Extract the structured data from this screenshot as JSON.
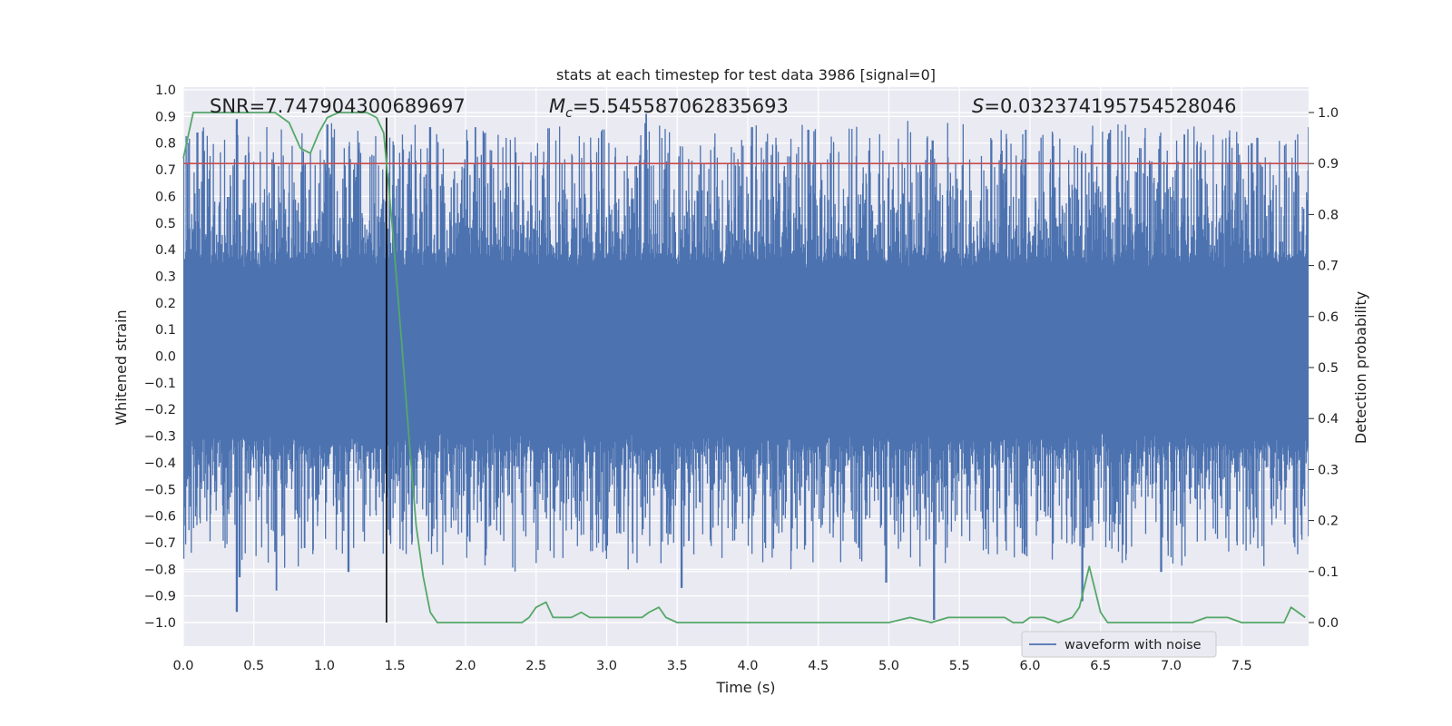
{
  "chart_data": {
    "type": "line",
    "title": "stats at each timestep for test data 3986 [signal=0]",
    "xlabel": "Time (s)",
    "ylabel": "Whitened strain",
    "ylabel_right": "Detection probability",
    "xlim": [
      0.0,
      8.0
    ],
    "ylim": [
      -1.0,
      1.0
    ],
    "ylim_right": [
      0.0,
      1.0
    ],
    "x_ticks": [
      "0.0",
      "0.5",
      "1.0",
      "1.5",
      "2.0",
      "2.5",
      "3.0",
      "3.5",
      "4.0",
      "4.5",
      "5.0",
      "5.5",
      "6.0",
      "6.5",
      "7.0",
      "7.5"
    ],
    "y_ticks": [
      "1.0",
      "0.9",
      "0.8",
      "0.7",
      "0.6",
      "0.5",
      "0.4",
      "0.3",
      "0.2",
      "0.1",
      "0.0",
      "-0.1",
      "-0.2",
      "-0.3",
      "-0.4",
      "-0.5",
      "-0.6",
      "-0.7",
      "-0.8",
      "-0.9",
      "-1.0"
    ],
    "y_right_ticks": [
      "1.0",
      "0.9",
      "0.8",
      "0.7",
      "0.6",
      "0.5",
      "0.4",
      "0.3",
      "0.2",
      "0.1",
      "0.0"
    ],
    "annotations": {
      "snr": "SNR=7.747904300689697",
      "mc_symbol": "M",
      "mc_subscript": "c",
      "mc_value": "=5.545587062835693",
      "s_symbol": "S",
      "s_value": "=0.032374195754528046"
    },
    "legend": {
      "label": "waveform with noise",
      "placement": "lower-right"
    },
    "threshold_right": 0.9,
    "marker_time": 1.44,
    "grid": true,
    "series": [
      {
        "name": "waveform with noise",
        "color": "#4c72b0",
        "axis": "left",
        "n_samples": 2400,
        "envelope": {
          "typical_upper": 0.33,
          "typical_lower": -0.28,
          "peaks": [
            [
              0.38,
              0.89
            ],
            [
              0.38,
              -0.96
            ],
            [
              0.4,
              -0.83
            ],
            [
              0.66,
              -0.88
            ],
            [
              0.1,
              0.84
            ],
            [
              1.02,
              0.87
            ],
            [
              1.75,
              0.86
            ],
            [
              2.07,
              0.86
            ],
            [
              3.28,
              0.91
            ],
            [
              3.53,
              -0.87
            ],
            [
              4.03,
              0.86
            ],
            [
              4.43,
              0.85
            ],
            [
              5.31,
              0.81
            ],
            [
              5.32,
              -0.99
            ],
            [
              4.98,
              -0.85
            ],
            [
              5.97,
              0.85
            ],
            [
              6.37,
              -0.92
            ],
            [
              7.57,
              0.8
            ],
            [
              7.61,
              0.82
            ],
            [
              6.93,
              -0.81
            ],
            [
              0.86,
              -0.72
            ],
            [
              1.17,
              -0.81
            ]
          ]
        }
      },
      {
        "name": "detection probability",
        "color": "#55a868",
        "axis": "right",
        "x": [
          0.0,
          0.07,
          0.15,
          0.3,
          0.5,
          0.65,
          0.75,
          0.83,
          0.9,
          0.96,
          1.02,
          1.1,
          1.2,
          1.3,
          1.37,
          1.42,
          1.48,
          1.55,
          1.6,
          1.65,
          1.7,
          1.75,
          1.8,
          1.9,
          2.0,
          2.1,
          2.2,
          2.3,
          2.4,
          2.45,
          2.5,
          2.57,
          2.62,
          2.7,
          2.75,
          2.82,
          2.88,
          2.95,
          3.02,
          3.1,
          3.18,
          3.25,
          3.3,
          3.37,
          3.42,
          3.5,
          3.6,
          3.7,
          4.0,
          4.2,
          4.4,
          4.6,
          4.8,
          5.0,
          5.15,
          5.3,
          5.42,
          5.5,
          5.62,
          5.75,
          5.82,
          5.88,
          5.95,
          6.0,
          6.1,
          6.2,
          6.3,
          6.35,
          6.42,
          6.5,
          6.55,
          6.6,
          6.65,
          6.7,
          7.0,
          7.15,
          7.25,
          7.3,
          7.4,
          7.5,
          7.6,
          7.72,
          7.8,
          7.85,
          7.95
        ],
        "values": [
          0.91,
          1.0,
          1.0,
          1.0,
          1.0,
          1.0,
          0.98,
          0.93,
          0.92,
          0.96,
          0.99,
          1.0,
          1.0,
          1.0,
          0.99,
          0.96,
          0.78,
          0.54,
          0.36,
          0.19,
          0.09,
          0.02,
          0.0,
          0.0,
          0.0,
          0.0,
          0.0,
          0.0,
          0.0,
          0.01,
          0.03,
          0.04,
          0.01,
          0.01,
          0.01,
          0.02,
          0.01,
          0.01,
          0.01,
          0.01,
          0.01,
          0.01,
          0.02,
          0.03,
          0.01,
          0.0,
          0.0,
          0.0,
          0.0,
          0.0,
          0.0,
          0.0,
          0.0,
          0.0,
          0.01,
          0.0,
          0.01,
          0.01,
          0.01,
          0.01,
          0.01,
          0.0,
          0.0,
          0.01,
          0.01,
          0.0,
          0.01,
          0.03,
          0.11,
          0.02,
          0.0,
          0.0,
          0.0,
          0.0,
          0.0,
          0.0,
          0.01,
          0.01,
          0.01,
          0.0,
          0.0,
          0.0,
          0.0,
          0.03,
          0.01
        ]
      }
    ]
  }
}
